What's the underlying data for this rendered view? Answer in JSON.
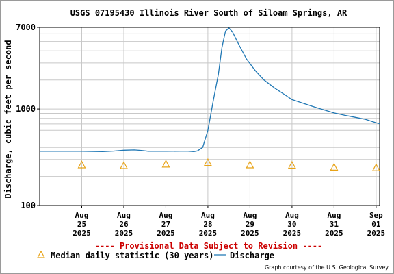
{
  "chart_data": {
    "type": "line",
    "title": "USGS 07195430 Illinois River South of Siloam Springs, AR",
    "ylabel": "Discharge, cubic feet per second",
    "xlabel": "",
    "yscale": "log",
    "ylim": [
      100,
      7000
    ],
    "yticks": [
      {
        "value": 100,
        "label": "100"
      },
      {
        "value": 1000,
        "label": "1000"
      },
      {
        "value": 7000,
        "label": "7000"
      }
    ],
    "xlim": [
      "2025-08-24 00:00",
      "2025-09-01 02:00"
    ],
    "xticks": [
      {
        "x": "2025-08-25 00:00",
        "lines": [
          "Aug",
          "25",
          "2025"
        ]
      },
      {
        "x": "2025-08-26 00:00",
        "lines": [
          "Aug",
          "26",
          "2025"
        ]
      },
      {
        "x": "2025-08-27 00:00",
        "lines": [
          "Aug",
          "27",
          "2025"
        ]
      },
      {
        "x": "2025-08-28 00:00",
        "lines": [
          "Aug",
          "28",
          "2025"
        ]
      },
      {
        "x": "2025-08-29 00:00",
        "lines": [
          "Aug",
          "29",
          "2025"
        ]
      },
      {
        "x": "2025-08-30 00:00",
        "lines": [
          "Aug",
          "30",
          "2025"
        ]
      },
      {
        "x": "2025-08-31 00:00",
        "lines": [
          "Aug",
          "31",
          "2025"
        ]
      },
      {
        "x": "2025-09-01 00:00",
        "lines": [
          "Sep",
          "01",
          "2025"
        ]
      }
    ],
    "grid": true,
    "series": [
      {
        "name": "Discharge",
        "color": "#1f77b4",
        "points": [
          [
            "2025-08-24 00:00",
            365
          ],
          [
            "2025-08-24 12:00",
            364
          ],
          [
            "2025-08-25 00:00",
            364
          ],
          [
            "2025-08-25 12:00",
            362
          ],
          [
            "2025-08-25 18:00",
            366
          ],
          [
            "2025-08-26 00:00",
            374
          ],
          [
            "2025-08-26 06:00",
            376
          ],
          [
            "2025-08-26 10:00",
            372
          ],
          [
            "2025-08-26 14:00",
            365
          ],
          [
            "2025-08-27 00:00",
            364
          ],
          [
            "2025-08-27 12:00",
            366
          ],
          [
            "2025-08-27 16:00",
            362
          ],
          [
            "2025-08-27 18:00",
            368
          ],
          [
            "2025-08-27 21:00",
            400
          ],
          [
            "2025-08-28 00:00",
            600
          ],
          [
            "2025-08-28 03:00",
            1200
          ],
          [
            "2025-08-28 06:00",
            2300
          ],
          [
            "2025-08-28 08:00",
            4300
          ],
          [
            "2025-08-28 10:00",
            6400
          ],
          [
            "2025-08-28 12:00",
            6900
          ],
          [
            "2025-08-28 14:00",
            6300
          ],
          [
            "2025-08-28 18:00",
            4500
          ],
          [
            "2025-08-28 22:00",
            3300
          ],
          [
            "2025-08-29 03:00",
            2500
          ],
          [
            "2025-08-29 08:00",
            2000
          ],
          [
            "2025-08-29 14:00",
            1650
          ],
          [
            "2025-08-29 20:00",
            1400
          ],
          [
            "2025-08-30 00:00",
            1250
          ],
          [
            "2025-08-30 06:00",
            1150
          ],
          [
            "2025-08-30 12:00",
            1060
          ],
          [
            "2025-08-30 18:00",
            980
          ],
          [
            "2025-08-31 00:00",
            910
          ],
          [
            "2025-08-31 06:00",
            860
          ],
          [
            "2025-08-31 12:00",
            820
          ],
          [
            "2025-08-31 18:00",
            780
          ],
          [
            "2025-09-01 00:00",
            720
          ],
          [
            "2025-09-01 02:00",
            705
          ]
        ]
      },
      {
        "name": "Median daily statistic (30 years)",
        "color": "#e8a317",
        "marker": "triangle",
        "points": [
          [
            "2025-08-25 00:00",
            260
          ],
          [
            "2025-08-26 00:00",
            256
          ],
          [
            "2025-08-27 00:00",
            265
          ],
          [
            "2025-08-28 00:00",
            275
          ],
          [
            "2025-08-29 00:00",
            260
          ],
          [
            "2025-08-30 00:00",
            258
          ],
          [
            "2025-08-31 00:00",
            246
          ],
          [
            "2025-09-01 00:00",
            243
          ]
        ]
      }
    ],
    "notice": "---- Provisional Data Subject to Revision ----",
    "legend": [
      {
        "label": "Median daily statistic (30 years)",
        "marker": "triangle",
        "color": "#e8a317"
      },
      {
        "label": "Discharge",
        "marker": "line",
        "color": "#1f77b4"
      }
    ],
    "credit": "Graph courtesy of the U.S. Geological Survey"
  }
}
